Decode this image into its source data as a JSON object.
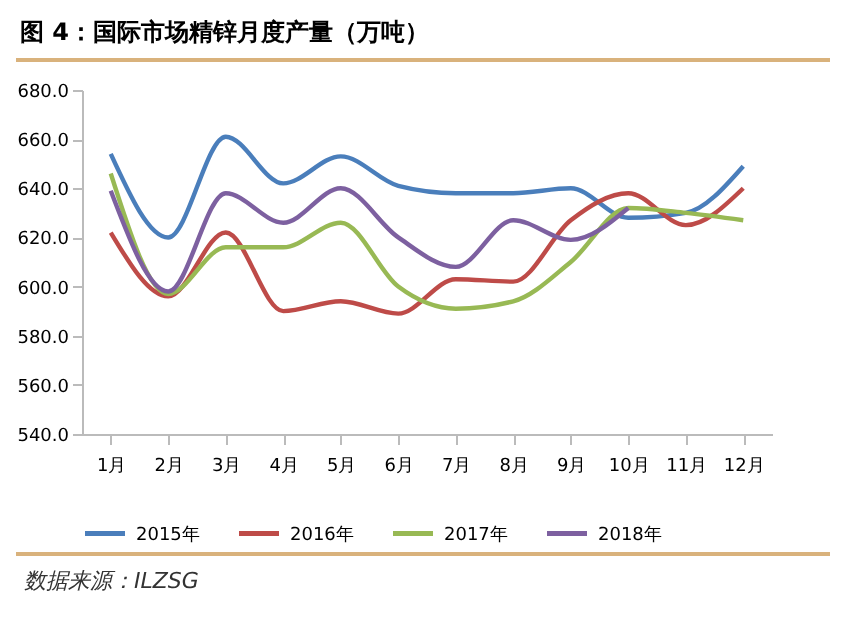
{
  "chart_data": {
    "type": "line",
    "title": "图 4：国际市场精锌月度产量（万吨）",
    "categories": [
      "1月",
      "2月",
      "3月",
      "4月",
      "5月",
      "6月",
      "7月",
      "8月",
      "9月",
      "10月",
      "11月",
      "12月"
    ],
    "series": [
      {
        "name": "2015年",
        "color": "#4a7ebb",
        "values": [
          654,
          620,
          661,
          642,
          653,
          641,
          638,
          638,
          640,
          628,
          630,
          649
        ]
      },
      {
        "name": "2016年",
        "color": "#be4b48",
        "values": [
          622,
          596,
          622,
          590,
          594,
          589,
          603,
          602,
          627,
          638,
          625,
          640
        ]
      },
      {
        "name": "2017年",
        "color": "#98b954",
        "values": [
          646,
          597,
          616,
          616,
          626,
          600,
          591,
          594,
          610,
          632,
          630,
          627
        ]
      },
      {
        "name": "2018年",
        "color": "#7d60a0",
        "values": [
          639,
          598,
          638,
          626,
          640,
          620,
          608,
          627,
          619,
          632,
          null,
          null
        ]
      }
    ],
    "ylim": [
      540,
      680
    ],
    "yticks": [
      {
        "value": 540,
        "label": "540.0"
      },
      {
        "value": 560,
        "label": "560.0"
      },
      {
        "value": 580,
        "label": "580.0"
      },
      {
        "value": 600,
        "label": "600.0"
      },
      {
        "value": 620,
        "label": "620.0"
      },
      {
        "value": 640,
        "label": "640.0"
      },
      {
        "value": 660,
        "label": "660.0"
      },
      {
        "value": 680,
        "label": "680.0"
      }
    ],
    "grid": false,
    "legend": "bottom",
    "marker": "none",
    "line_style": "solid",
    "annotations": [
      "数据来源：ILZSG"
    ]
  }
}
